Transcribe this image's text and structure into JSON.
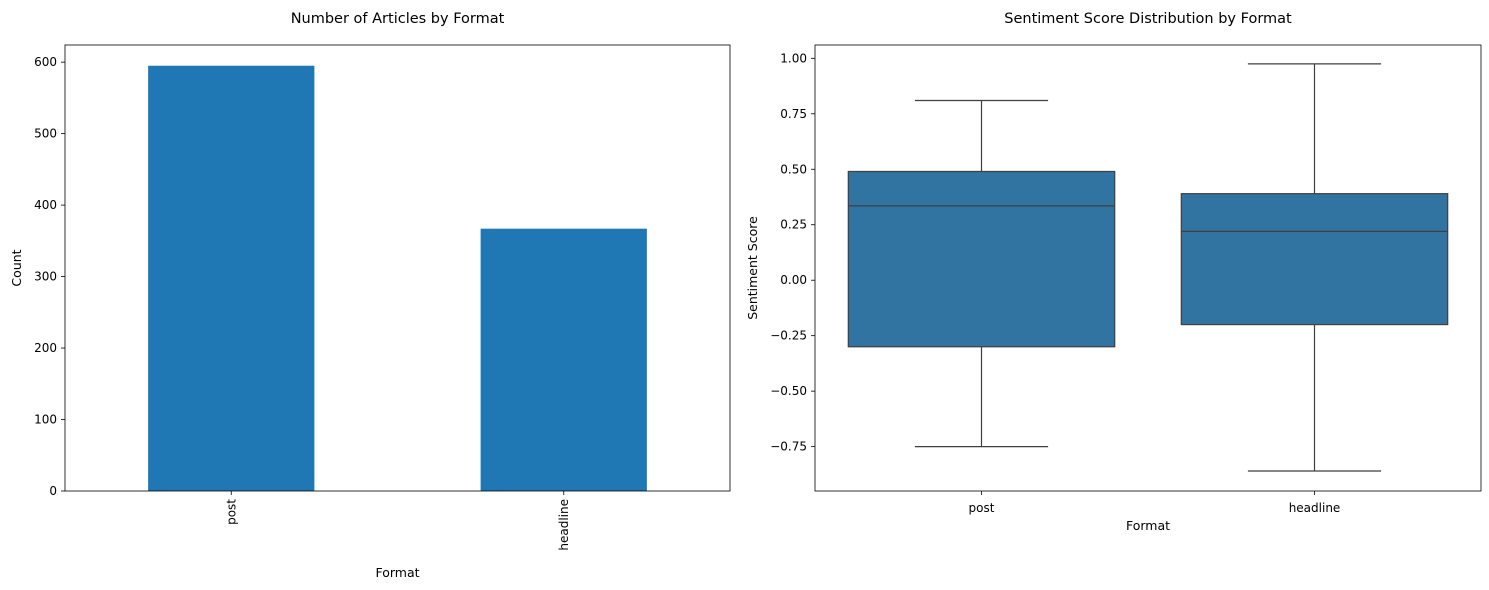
{
  "chart_data": [
    {
      "type": "bar",
      "title": "Number of Articles by Format",
      "xlabel": "Format",
      "ylabel": "Count",
      "categories": [
        "post",
        "headline"
      ],
      "values": [
        595,
        367
      ],
      "ylim": [
        0,
        624
      ],
      "yticks": [
        0,
        100,
        200,
        300,
        400,
        500,
        600
      ],
      "ytick_labels": [
        "0",
        "100",
        "200",
        "300",
        "400",
        "500",
        "600"
      ],
      "xtick_rotation": "vertical",
      "color": "#1f77b4",
      "grid": false
    },
    {
      "type": "box",
      "title": "Sentiment Score Distribution by Format",
      "xlabel": "Format",
      "ylabel": "Sentiment Score",
      "categories": [
        "post",
        "headline"
      ],
      "boxes": [
        {
          "whislo": -0.75,
          "q1": -0.3,
          "med": 0.335,
          "q3": 0.49,
          "whishi": 0.81
        },
        {
          "whislo": -0.86,
          "q1": -0.2,
          "med": 0.22,
          "q3": 0.39,
          "whishi": 0.975
        }
      ],
      "ylim": [
        -0.95,
        1.06
      ],
      "yticks": [
        -0.75,
        -0.5,
        -0.25,
        0.0,
        0.25,
        0.5,
        0.75,
        1.0
      ],
      "ytick_labels": [
        "−0.75",
        "−0.50",
        "−0.25",
        "0.00",
        "0.25",
        "0.50",
        "0.75",
        "1.00"
      ],
      "color": "#3274a1",
      "grid": false
    }
  ]
}
